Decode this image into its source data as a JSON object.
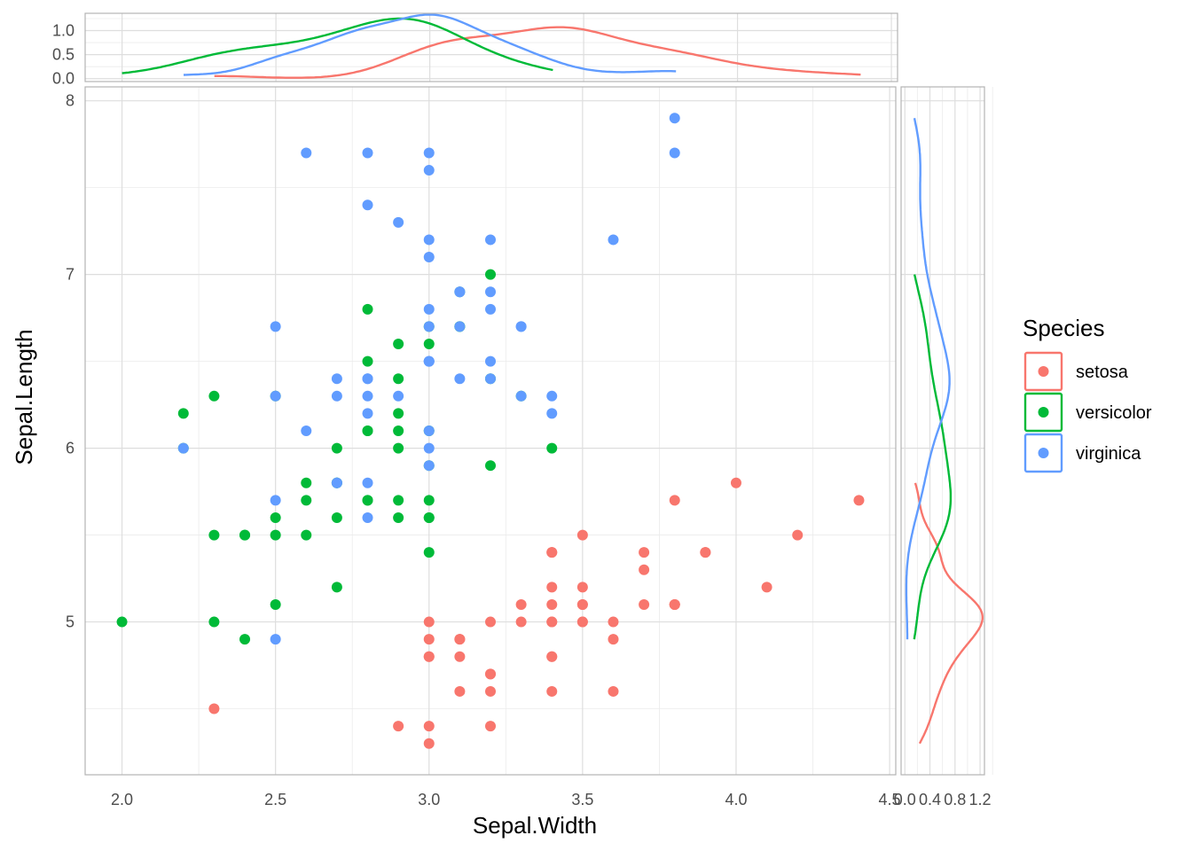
{
  "chart_data": {
    "type": "scatter",
    "title": "",
    "xlabel": "Sepal.Width",
    "ylabel": "Sepal.Length",
    "xlim": [
      1.88,
      4.52
    ],
    "ylim": [
      4.12,
      8.08
    ],
    "x_ticks": [
      "2.0",
      "2.5",
      "3.0",
      "3.5",
      "4.0",
      "4.5"
    ],
    "y_ticks": [
      "5",
      "6",
      "7",
      "8"
    ],
    "grid": true,
    "legend": {
      "title": "Species",
      "position": "right"
    },
    "series": [
      {
        "name": "setosa",
        "color": "#F8766D",
        "points": [
          [
            3.5,
            5.1
          ],
          [
            3.0,
            4.9
          ],
          [
            3.2,
            4.7
          ],
          [
            3.1,
            4.6
          ],
          [
            3.6,
            5.0
          ],
          [
            3.9,
            5.4
          ],
          [
            3.4,
            4.6
          ],
          [
            3.4,
            5.0
          ],
          [
            2.9,
            4.4
          ],
          [
            3.1,
            4.9
          ],
          [
            3.7,
            5.4
          ],
          [
            3.4,
            4.8
          ],
          [
            3.0,
            4.8
          ],
          [
            3.0,
            4.3
          ],
          [
            4.0,
            5.8
          ],
          [
            4.4,
            5.7
          ],
          [
            3.9,
            5.4
          ],
          [
            3.5,
            5.1
          ],
          [
            3.8,
            5.7
          ],
          [
            3.8,
            5.1
          ],
          [
            3.4,
            5.4
          ],
          [
            3.7,
            5.1
          ],
          [
            3.6,
            4.6
          ],
          [
            3.3,
            5.1
          ],
          [
            3.4,
            4.8
          ],
          [
            3.0,
            5.0
          ],
          [
            3.4,
            5.0
          ],
          [
            3.5,
            5.2
          ],
          [
            3.4,
            5.2
          ],
          [
            3.2,
            4.7
          ],
          [
            3.1,
            4.8
          ],
          [
            3.4,
            5.4
          ],
          [
            4.1,
            5.2
          ],
          [
            4.2,
            5.5
          ],
          [
            3.1,
            4.9
          ],
          [
            3.2,
            5.0
          ],
          [
            3.5,
            5.5
          ],
          [
            3.6,
            4.9
          ],
          [
            3.0,
            4.4
          ],
          [
            3.4,
            5.1
          ],
          [
            3.5,
            5.0
          ],
          [
            2.3,
            4.5
          ],
          [
            3.2,
            4.4
          ],
          [
            3.5,
            5.0
          ],
          [
            3.8,
            5.1
          ],
          [
            3.0,
            4.8
          ],
          [
            3.8,
            5.1
          ],
          [
            3.2,
            4.6
          ],
          [
            3.7,
            5.3
          ],
          [
            3.3,
            5.0
          ]
        ]
      },
      {
        "name": "versicolor",
        "color": "#00BA38",
        "points": [
          [
            3.2,
            7.0
          ],
          [
            3.2,
            6.4
          ],
          [
            3.1,
            6.9
          ],
          [
            2.3,
            5.5
          ],
          [
            2.8,
            6.5
          ],
          [
            2.8,
            5.7
          ],
          [
            3.3,
            6.3
          ],
          [
            2.4,
            4.9
          ],
          [
            2.9,
            6.6
          ],
          [
            2.7,
            5.2
          ],
          [
            2.0,
            5.0
          ],
          [
            3.0,
            5.9
          ],
          [
            2.2,
            6.0
          ],
          [
            2.9,
            6.1
          ],
          [
            2.9,
            5.6
          ],
          [
            3.1,
            6.7
          ],
          [
            3.0,
            5.6
          ],
          [
            2.7,
            5.8
          ],
          [
            2.2,
            6.2
          ],
          [
            2.5,
            5.6
          ],
          [
            3.2,
            5.9
          ],
          [
            2.8,
            6.1
          ],
          [
            2.5,
            6.3
          ],
          [
            2.8,
            6.1
          ],
          [
            2.9,
            6.4
          ],
          [
            3.0,
            6.6
          ],
          [
            2.8,
            6.8
          ],
          [
            3.0,
            6.7
          ],
          [
            2.9,
            6.0
          ],
          [
            2.6,
            5.7
          ],
          [
            2.4,
            5.5
          ],
          [
            2.4,
            5.5
          ],
          [
            2.7,
            5.8
          ],
          [
            2.7,
            6.0
          ],
          [
            3.0,
            5.4
          ],
          [
            3.4,
            6.0
          ],
          [
            3.1,
            6.7
          ],
          [
            2.3,
            6.3
          ],
          [
            3.0,
            5.6
          ],
          [
            2.5,
            5.5
          ],
          [
            2.6,
            5.5
          ],
          [
            3.0,
            6.1
          ],
          [
            2.6,
            5.8
          ],
          [
            2.3,
            5.0
          ],
          [
            2.7,
            5.6
          ],
          [
            3.0,
            5.7
          ],
          [
            2.9,
            5.7
          ],
          [
            2.9,
            6.2
          ],
          [
            2.5,
            5.1
          ],
          [
            2.8,
            5.7
          ]
        ]
      },
      {
        "name": "virginica",
        "color": "#619CFF",
        "points": [
          [
            3.3,
            6.3
          ],
          [
            2.7,
            5.8
          ],
          [
            3.0,
            7.1
          ],
          [
            2.9,
            6.3
          ],
          [
            3.0,
            6.5
          ],
          [
            3.0,
            7.6
          ],
          [
            2.5,
            4.9
          ],
          [
            2.9,
            7.3
          ],
          [
            2.5,
            6.7
          ],
          [
            3.6,
            7.2
          ],
          [
            3.2,
            6.5
          ],
          [
            2.7,
            6.4
          ],
          [
            3.0,
            6.8
          ],
          [
            2.5,
            5.7
          ],
          [
            2.8,
            5.8
          ],
          [
            3.2,
            6.4
          ],
          [
            3.0,
            6.5
          ],
          [
            3.8,
            7.7
          ],
          [
            2.6,
            7.7
          ],
          [
            2.2,
            6.0
          ],
          [
            3.2,
            6.9
          ],
          [
            2.8,
            5.6
          ],
          [
            2.8,
            7.7
          ],
          [
            2.7,
            6.3
          ],
          [
            3.3,
            6.7
          ],
          [
            3.2,
            7.2
          ],
          [
            2.8,
            6.2
          ],
          [
            3.0,
            6.1
          ],
          [
            2.8,
            6.4
          ],
          [
            3.0,
            7.2
          ],
          [
            2.8,
            7.4
          ],
          [
            3.8,
            7.9
          ],
          [
            2.8,
            6.4
          ],
          [
            2.8,
            6.3
          ],
          [
            2.6,
            6.1
          ],
          [
            3.0,
            7.7
          ],
          [
            3.4,
            6.3
          ],
          [
            3.1,
            6.4
          ],
          [
            3.0,
            6.0
          ],
          [
            3.1,
            6.9
          ],
          [
            3.1,
            6.7
          ],
          [
            3.1,
            6.9
          ],
          [
            2.7,
            5.8
          ],
          [
            3.2,
            6.8
          ],
          [
            3.3,
            6.7
          ],
          [
            3.0,
            6.7
          ],
          [
            2.5,
            6.3
          ],
          [
            3.0,
            6.5
          ],
          [
            3.4,
            6.2
          ],
          [
            3.0,
            5.9
          ]
        ]
      }
    ],
    "marginal_top": {
      "type": "density",
      "variable": "Sepal.Width",
      "y_ticks": [
        "0.0",
        "0.5",
        "1.0"
      ],
      "ylim": [
        -0.06,
        1.36
      ]
    },
    "marginal_right": {
      "type": "density",
      "variable": "Sepal.Length",
      "x_ticks": [
        "0.0",
        "0.4",
        "0.8",
        "1.2"
      ],
      "xlim": [
        -0.06,
        1.27
      ]
    }
  }
}
